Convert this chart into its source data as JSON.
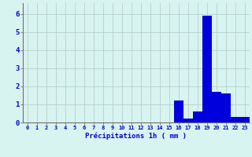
{
  "hours": [
    0,
    1,
    2,
    3,
    4,
    5,
    6,
    7,
    8,
    9,
    10,
    11,
    12,
    13,
    14,
    15,
    16,
    17,
    18,
    19,
    20,
    21,
    22,
    23
  ],
  "values": [
    0,
    0,
    0,
    0,
    0,
    0,
    0,
    0,
    0,
    0,
    0,
    0,
    0,
    0,
    0,
    0,
    1.2,
    0.2,
    0.6,
    5.9,
    1.7,
    1.6,
    0.3,
    0.3
  ],
  "bar_color": "#0000dd",
  "background_color": "#d8f4f0",
  "grid_color": "#b8cece",
  "xlabel": "Précipitations 1h ( mm )",
  "xlabel_color": "#0000cc",
  "tick_color": "#0000cc",
  "axis_color": "#707070",
  "ylim": [
    0,
    6.6
  ],
  "yticks": [
    0,
    1,
    2,
    3,
    4,
    5,
    6
  ],
  "bar_width": 1.0
}
